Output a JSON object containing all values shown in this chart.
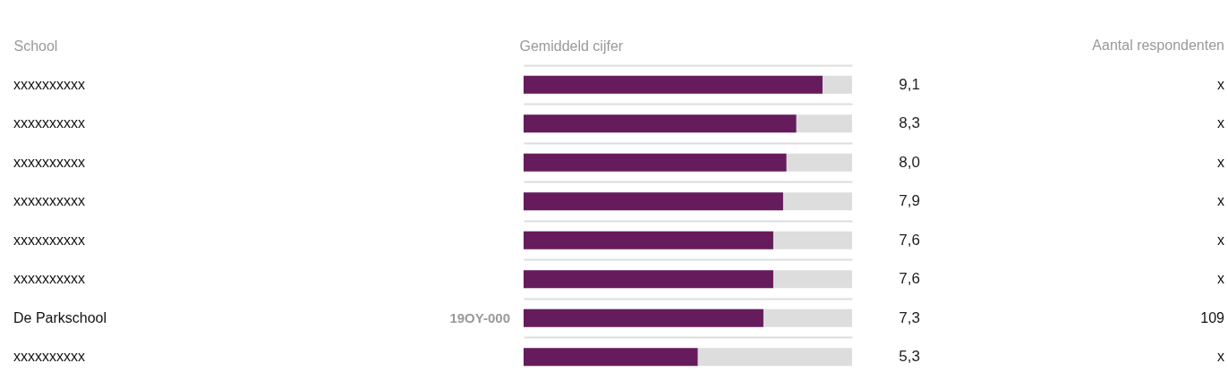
{
  "chart_data": {
    "type": "bar",
    "orientation": "horizontal",
    "ylabel": "School",
    "xlabel": "Gemiddeld cijfer",
    "categories": [
      "xxxxxxxxxx",
      "xxxxxxxxxx",
      "xxxxxxxxxx",
      "xxxxxxxxxx",
      "xxxxxxxxxx",
      "xxxxxxxxxx",
      "De Parkschool",
      "xxxxxxxxxx"
    ],
    "y2_categories": [
      "x",
      "x",
      "x",
      "x",
      "x",
      "x",
      "109",
      "x"
    ],
    "values": [
      9.1,
      8.3,
      8.0,
      7.9,
      7.6,
      7.6,
      7.3,
      5.3
    ],
    "value_labels": [
      "9,1",
      "8,3",
      "8,0",
      "7,9",
      "7,6",
      "7,6",
      "7,3",
      "5,3"
    ],
    "color": "#661c5c",
    "annotations": [
      "19OY-000",
      "Aantal respondenten"
    ],
    "tick_labels": "y",
    "grid": "y"
  }
}
